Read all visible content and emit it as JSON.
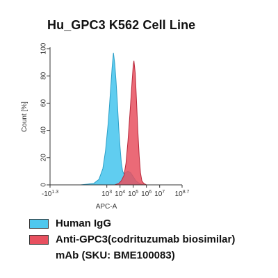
{
  "chart_data": {
    "type": "area",
    "title": "Hu_GPC3 K562 Cell Line",
    "xlabel": "APC-A",
    "ylabel": "Count [%]",
    "ylim": [
      0,
      100
    ],
    "xlim": [
      -1.3,
      8.7
    ],
    "y_ticks": [
      0,
      20,
      40,
      60,
      80,
      100
    ],
    "x_ticks": [
      {
        "pos": -1.3,
        "base": "-10",
        "exp": "1.3"
      },
      {
        "pos": 3,
        "base": "10",
        "exp": "3"
      },
      {
        "pos": 4,
        "base": "10",
        "exp": "4"
      },
      {
        "pos": 5,
        "base": "10",
        "exp": "5"
      },
      {
        "pos": 6,
        "base": "10",
        "exp": "6"
      },
      {
        "pos": 7,
        "base": "10",
        "exp": "7"
      },
      {
        "pos": 8.7,
        "base": "10",
        "exp": "8.7"
      }
    ],
    "series": [
      {
        "name": "Human IgG",
        "color": "#4fc8ee",
        "x": [
          1.0,
          2.0,
          2.4,
          2.7,
          2.9,
          3.1,
          3.2,
          3.3,
          3.4,
          3.5,
          3.6,
          3.7,
          3.8,
          3.9,
          4.0,
          4.1,
          4.2,
          4.3,
          4.4,
          4.6,
          4.8,
          5.0,
          5.2,
          5.4,
          5.6,
          5.8
        ],
        "y": [
          0,
          1,
          4,
          12,
          25,
          45,
          58,
          72,
          86,
          97,
          89,
          76,
          60,
          42,
          28,
          16,
          10,
          8,
          9,
          10,
          9,
          6,
          3,
          1.5,
          0.5,
          0
        ]
      },
      {
        "name": "Anti-GPC3(codrituzumab biosimilar) mAb (SKU: BME100083)",
        "color": "#e8505f",
        "x": [
          3.6,
          3.9,
          4.1,
          4.3,
          4.45,
          4.6,
          4.75,
          4.9,
          5.0,
          5.05,
          5.15,
          5.25,
          5.35,
          5.45,
          5.55,
          5.65,
          5.8,
          6.0
        ],
        "y": [
          0,
          1,
          3,
          7,
          16,
          32,
          52,
          74,
          88,
          91,
          82,
          62,
          40,
          21,
          9,
          3,
          1,
          0
        ]
      }
    ]
  },
  "legend": {
    "items": [
      {
        "label": "Human IgG",
        "color": "#4fc8ee"
      },
      {
        "label": "Anti-GPC3(codrituzumab biosimilar)",
        "label2": "mAb (SKU: BME100083)",
        "color": "#e8505f"
      }
    ]
  }
}
